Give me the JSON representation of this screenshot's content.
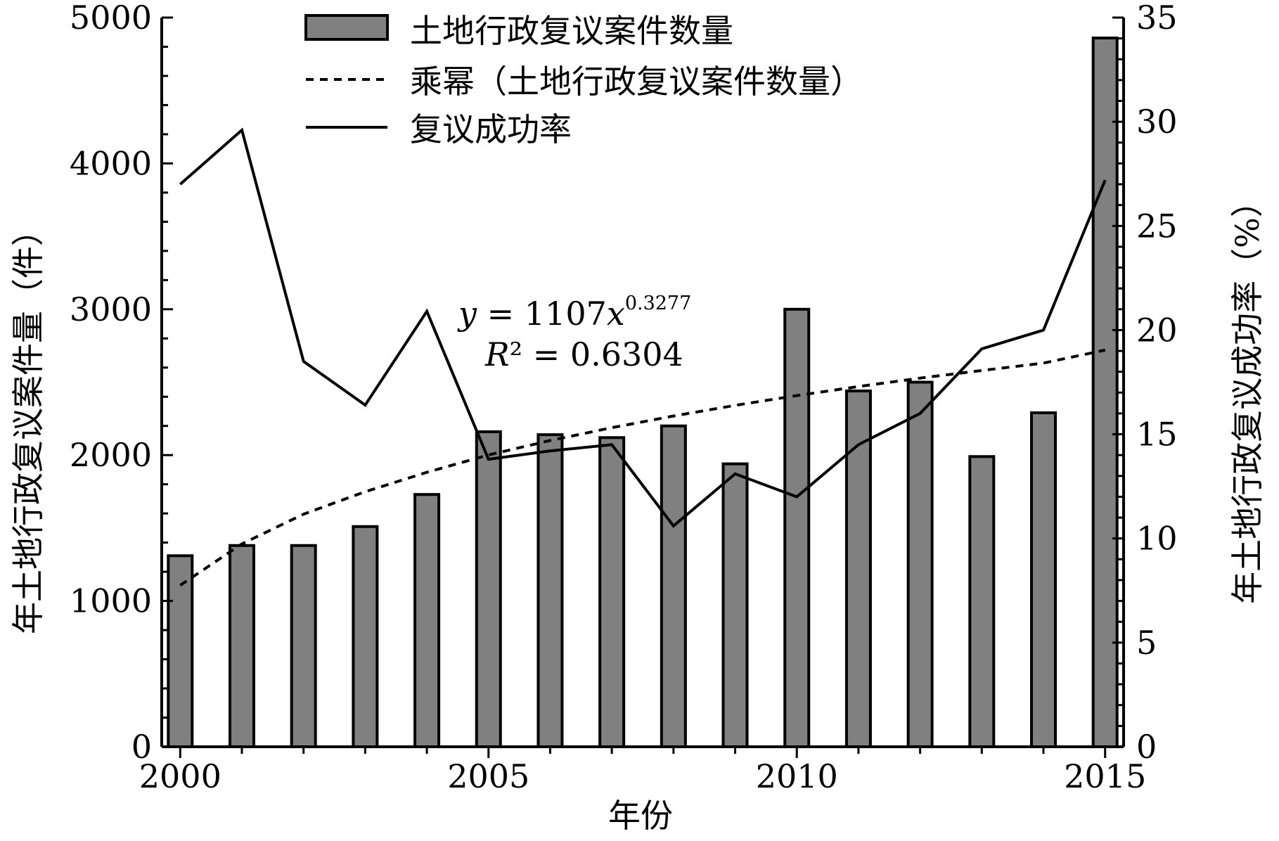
{
  "chart_data": {
    "type": "bar",
    "xlabel": "年份",
    "ylabel_left": "年土地行政复议案件量（件）",
    "ylabel_right": "年土地行政复议成功率（%）",
    "x": [
      2000,
      2001,
      2002,
      2003,
      2004,
      2005,
      2006,
      2007,
      2008,
      2009,
      2010,
      2011,
      2012,
      2013,
      2014,
      2015
    ],
    "x_ticks": [
      "2000",
      "2005",
      "2010",
      "2015"
    ],
    "x_range": [
      1999.7,
      2015.3
    ],
    "y_left_range": [
      0,
      5000
    ],
    "y_left_ticks": [
      "0",
      "1000",
      "2000",
      "3000",
      "4000",
      "5000"
    ],
    "y_right_range": [
      0,
      35
    ],
    "y_right_ticks": [
      "0",
      "5",
      "10",
      "15",
      "20",
      "25",
      "30",
      "35"
    ],
    "series": [
      {
        "name": "土地行政复议案件数量",
        "kind": "bar",
        "axis": "left",
        "color": "#808080",
        "values": [
          1310,
          1380,
          1380,
          1510,
          1730,
          2160,
          2140,
          2120,
          2200,
          1940,
          3000,
          2440,
          2500,
          1990,
          2290,
          4860
        ]
      },
      {
        "name": "乘幂（土地行政复议案件数量）",
        "kind": "line-dashed",
        "axis": "left",
        "color": "#000000",
        "values": [
          1107,
          1391,
          1595,
          1749,
          1882,
          2001,
          2100,
          2188,
          2268,
          2341,
          2408,
          2470,
          2528,
          2580,
          2631,
          2720
        ]
      },
      {
        "name": "复议成功率",
        "kind": "line",
        "axis": "right",
        "color": "#000000",
        "values": [
          27.0,
          29.6,
          18.5,
          16.4,
          20.9,
          13.8,
          14.2,
          14.5,
          10.6,
          13.1,
          12.0,
          14.5,
          16.0,
          19.1,
          20.0,
          27.2
        ]
      }
    ],
    "annotation": {
      "eq_lhs": "y",
      "eq_mid": " = 1107",
      "eq_var": "x",
      "eq_exp": "0.3277",
      "r2_sym": "R",
      "r2_rest": "² = 0.6304"
    },
    "legend_position": "top-center",
    "grid": false
  }
}
